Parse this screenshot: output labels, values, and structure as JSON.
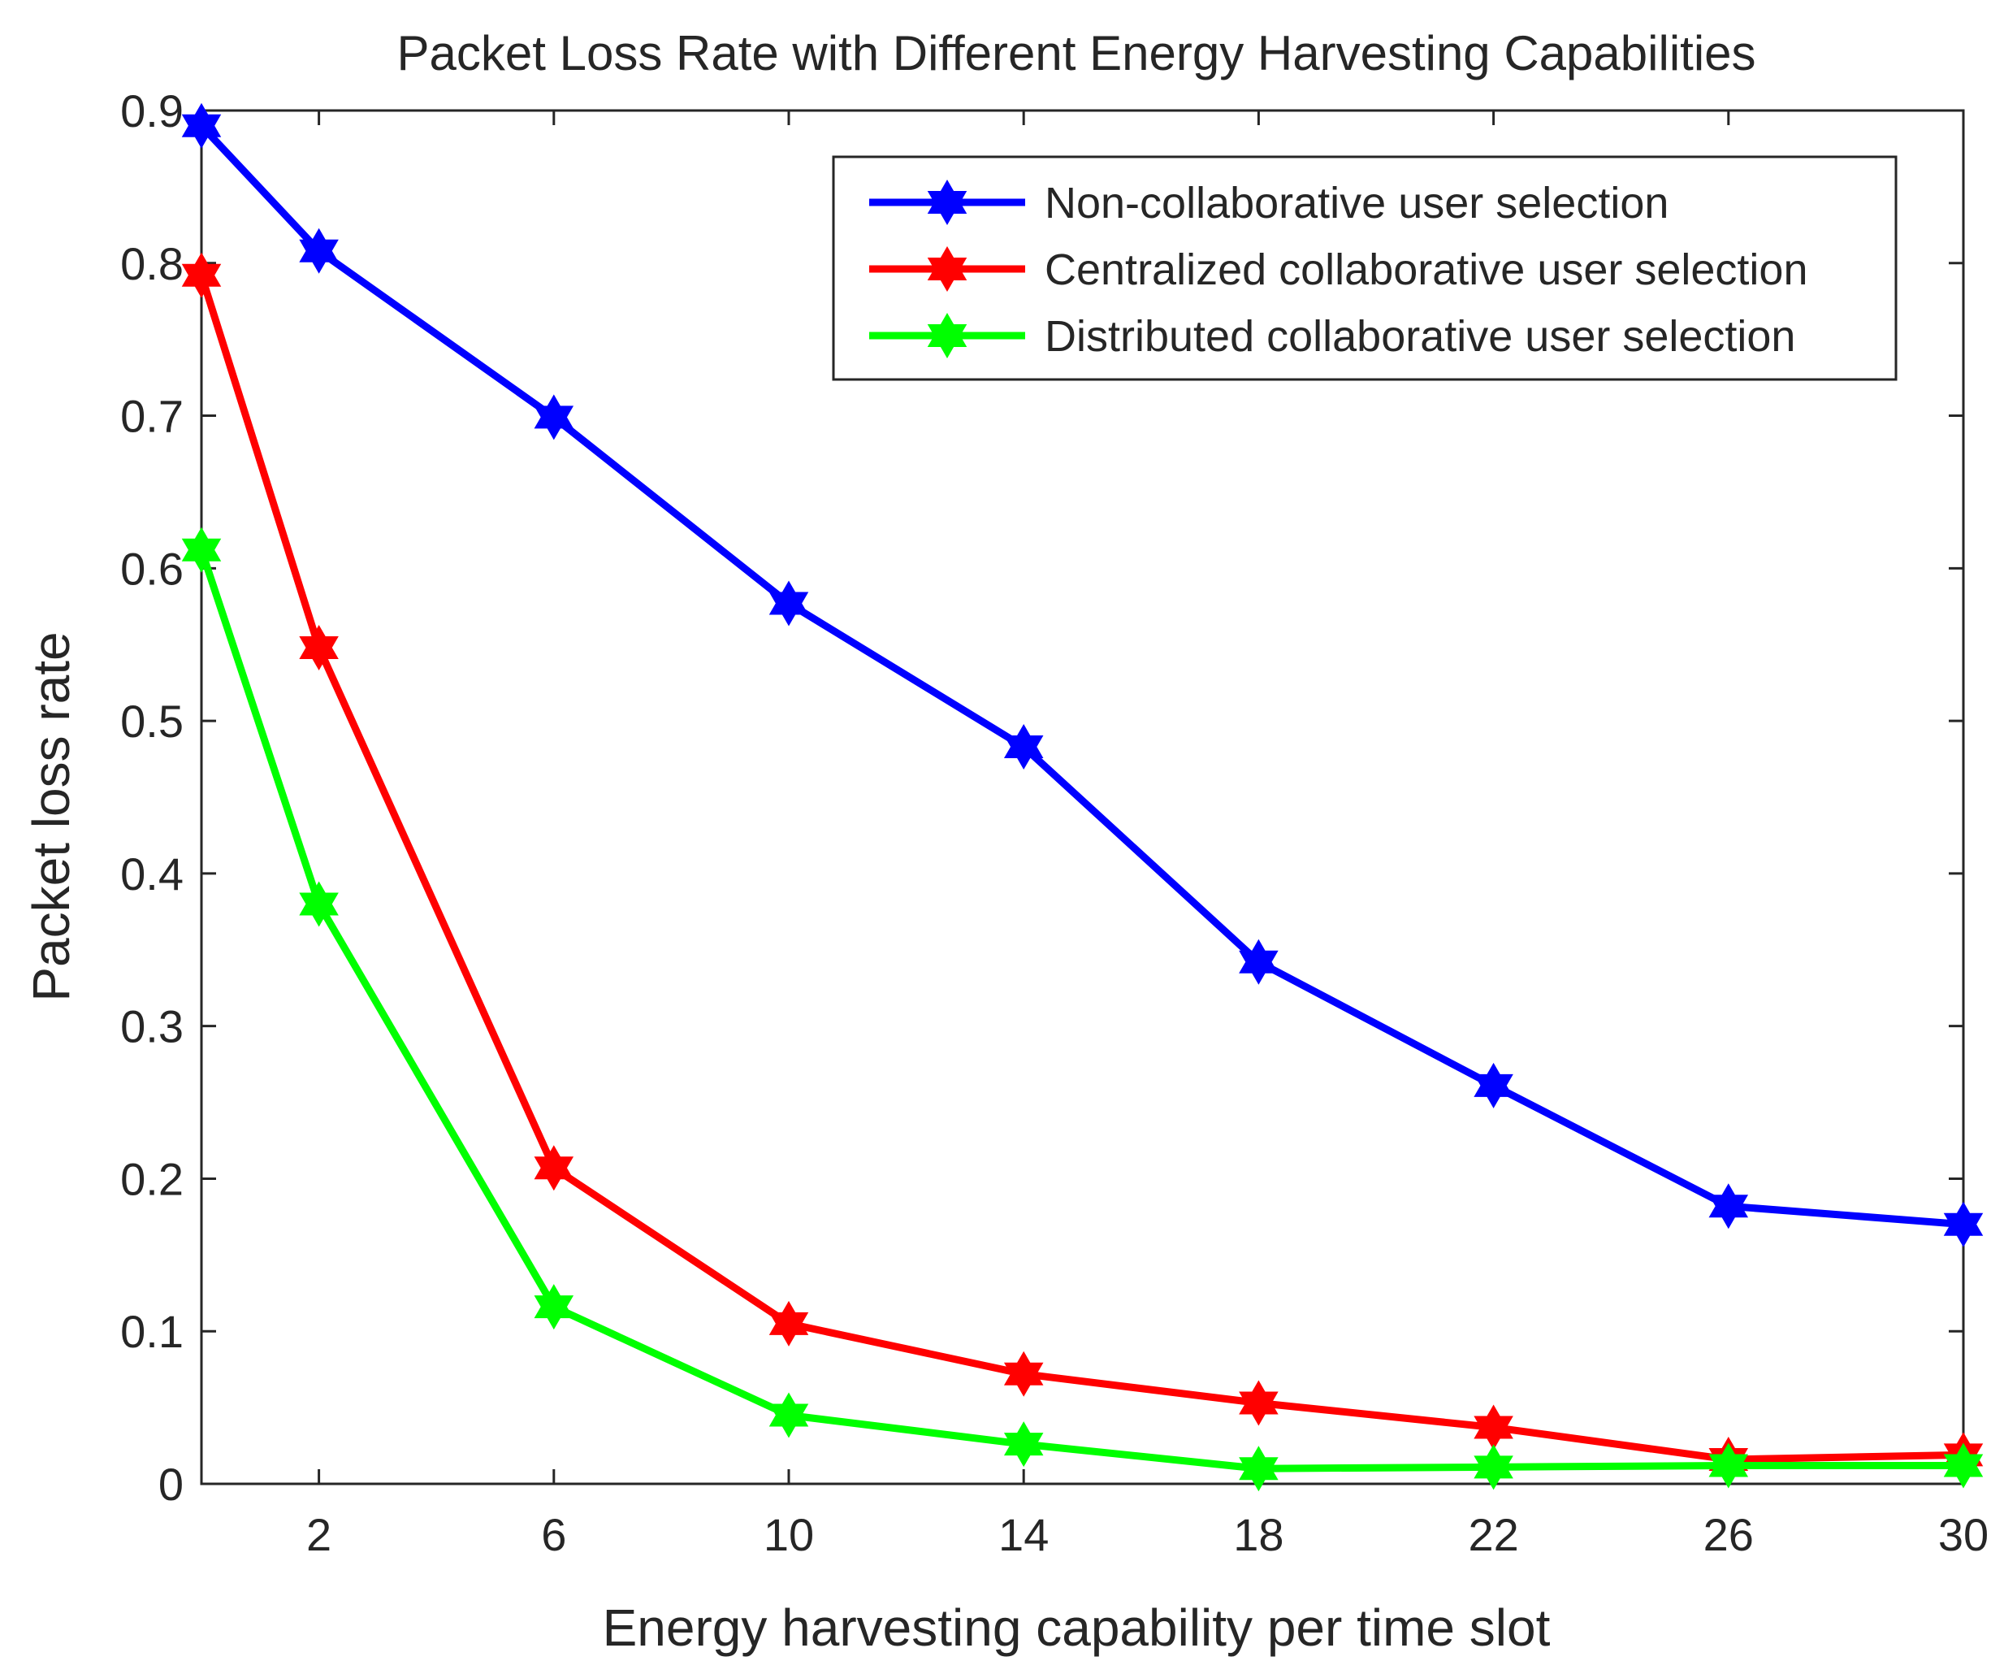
{
  "chart_data": {
    "type": "line",
    "title": "Packet Loss Rate with Different Energy Harvesting Capabilities",
    "xlabel": "Energy harvesting capability per time slot",
    "ylabel": "Packet loss rate",
    "x": [
      0,
      2,
      6,
      10,
      14,
      18,
      22,
      26,
      30
    ],
    "xlim": [
      0,
      30
    ],
    "ylim": [
      0,
      0.9
    ],
    "xticks": [
      2,
      6,
      10,
      14,
      18,
      22,
      26,
      30
    ],
    "xtick_labels": [
      "2",
      "6",
      "10",
      "14",
      "18",
      "22",
      "26",
      "30"
    ],
    "yticks": [
      0,
      0.1,
      0.2,
      0.3,
      0.4,
      0.5,
      0.6,
      0.7,
      0.8,
      0.9
    ],
    "ytick_labels": [
      "0",
      "0.1",
      "0.2",
      "0.3",
      "0.4",
      "0.5",
      "0.6",
      "0.7",
      "0.8",
      "0.9"
    ],
    "grid": false,
    "legend_position": "top-right",
    "series": [
      {
        "name": "Non-collaborative user selection",
        "color": "#0000ff",
        "marker": "hexagram-star",
        "values": [
          0.89,
          0.808,
          0.699,
          0.577,
          0.483,
          0.342,
          0.261,
          0.182,
          0.17
        ]
      },
      {
        "name": "Centralized collaborative user selection",
        "color": "#ff0000",
        "marker": "hexagram-star",
        "values": [
          0.792,
          0.548,
          0.207,
          0.105,
          0.072,
          0.053,
          0.037,
          0.016,
          0.019
        ]
      },
      {
        "name": "Distributed collaborative user selection",
        "color": "#00ff00",
        "marker": "hexagram-star",
        "values": [
          0.612,
          0.38,
          0.116,
          0.045,
          0.026,
          0.01,
          0.011,
          0.012,
          0.012
        ]
      }
    ]
  }
}
